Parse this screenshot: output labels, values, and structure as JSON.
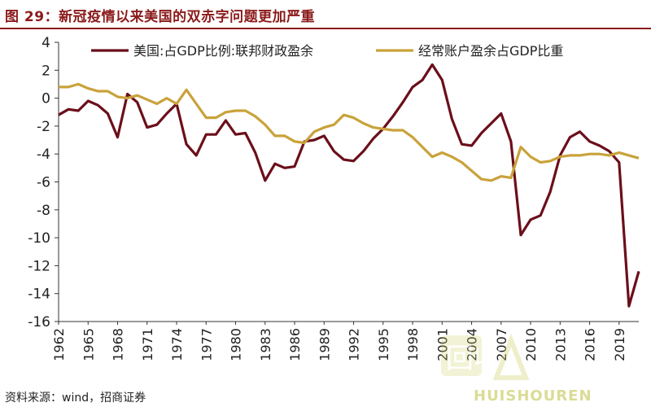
{
  "header": {
    "title": "图 29：新冠疫情以来美国的双赤字问题更加严重"
  },
  "footer": {
    "source": "资料来源：wind，招商证券"
  },
  "watermark": {
    "glyph": "回收",
    "text": "HUISHOUREN"
  },
  "chart_data": {
    "type": "line",
    "title": "",
    "xlabel": "",
    "ylabel": "",
    "xlim": [
      1962,
      2021
    ],
    "ylim": [
      -16,
      4
    ],
    "yticks": [
      4,
      2,
      0,
      -2,
      -4,
      -6,
      -8,
      -10,
      -12,
      -14,
      -16
    ],
    "xticks": [
      "1962",
      "1965",
      "1968",
      "1971",
      "1974",
      "1977",
      "1980",
      "1983",
      "1986",
      "1989",
      "1992",
      "1995",
      "1998",
      "2001",
      "2004",
      "2007",
      "2010",
      "2013",
      "2016",
      "2019"
    ],
    "grid": false,
    "legend_position": "top",
    "x": [
      1962,
      1963,
      1964,
      1965,
      1966,
      1967,
      1968,
      1969,
      1970,
      1971,
      1972,
      1973,
      1974,
      1975,
      1976,
      1977,
      1978,
      1979,
      1980,
      1981,
      1982,
      1983,
      1984,
      1985,
      1986,
      1987,
      1988,
      1989,
      1990,
      1991,
      1992,
      1993,
      1994,
      1995,
      1996,
      1997,
      1998,
      1999,
      2000,
      2001,
      2002,
      2003,
      2004,
      2005,
      2006,
      2007,
      2008,
      2009,
      2010,
      2011,
      2012,
      2013,
      2014,
      2015,
      2016,
      2017,
      2018,
      2019,
      2020,
      2021
    ],
    "series": [
      {
        "name": "美国:占GDP比例:联邦财政盈余",
        "color": "#6b0f1a",
        "values": [
          -1.2,
          -0.8,
          -0.9,
          -0.2,
          -0.5,
          -1.1,
          -2.8,
          0.3,
          -0.3,
          -2.1,
          -1.9,
          -1.1,
          -0.4,
          -3.3,
          -4.1,
          -2.6,
          -2.6,
          -1.6,
          -2.6,
          -2.5,
          -3.9,
          -5.9,
          -4.7,
          -5.0,
          -4.9,
          -3.1,
          -3.0,
          -2.7,
          -3.8,
          -4.4,
          -4.5,
          -3.8,
          -2.9,
          -2.2,
          -1.3,
          -0.3,
          0.8,
          1.3,
          2.4,
          1.3,
          -1.5,
          -3.3,
          -3.4,
          -2.5,
          -1.8,
          -1.1,
          -3.1,
          -9.8,
          -8.7,
          -8.4,
          -6.7,
          -4.1,
          -2.8,
          -2.4,
          -3.1,
          -3.4,
          -3.8,
          -4.6,
          -14.9,
          -12.4
        ]
      },
      {
        "name": "经常账户盈余占GDP比重",
        "color": "#c9a23a",
        "values": [
          0.8,
          0.8,
          1.0,
          0.7,
          0.5,
          0.5,
          0.1,
          0.0,
          0.2,
          -0.1,
          -0.4,
          0.0,
          -0.4,
          0.6,
          -0.4,
          -1.4,
          -1.4,
          -1.0,
          -0.9,
          -0.9,
          -1.3,
          -1.9,
          -2.7,
          -2.7,
          -3.1,
          -3.2,
          -2.4,
          -2.1,
          -1.9,
          -1.2,
          -1.4,
          -1.8,
          -2.1,
          -2.2,
          -2.3,
          -2.3,
          -2.8,
          -3.5,
          -4.2,
          -3.9,
          -4.2,
          -4.6,
          -5.2,
          -5.8,
          -5.9,
          -5.6,
          -5.7,
          -3.5,
          -4.2,
          -4.6,
          -4.5,
          -4.2,
          -4.1,
          -4.1,
          -4.0,
          -4.0,
          -4.1,
          -3.9,
          -4.1,
          -4.3
        ]
      }
    ]
  }
}
